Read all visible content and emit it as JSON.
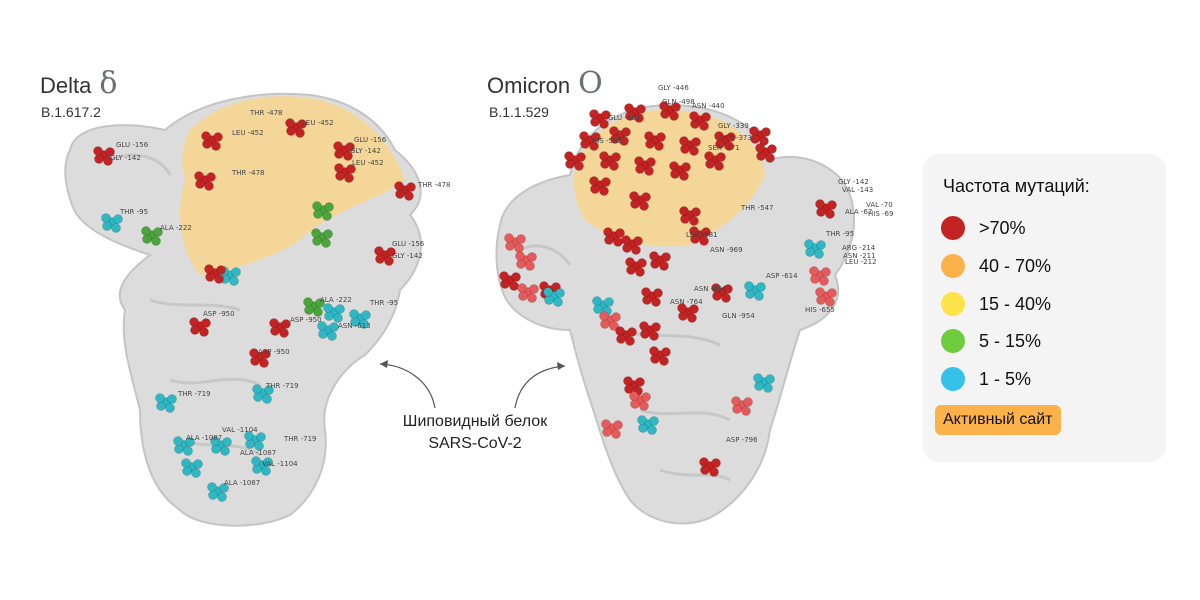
{
  "variants": [
    {
      "name": "Delta",
      "glyph": "δ",
      "code": "B.1.617.2",
      "labels": [
        "THR -478",
        "LEU -452",
        "LEU -452",
        "GLU -156",
        "GLY -142",
        "LEU -452",
        "GLU -156",
        "GLY -142",
        "THR -478",
        "THR -478",
        "THR -95",
        "ALA -222",
        "GLU -156",
        "GLY -142",
        "ALA -222",
        "THR -95",
        "ASP -950",
        "ASP -950",
        "ASN -613",
        "ASP -950",
        "THR -719",
        "THR -719",
        "VAL -1104",
        "ALA -1087",
        "THR -719",
        "ALA -1087",
        "VAL -1104",
        "ALA -1087"
      ]
    },
    {
      "name": "Omicron",
      "glyph": "O",
      "code": "B.1.1.529",
      "labels": [
        "GLY -446",
        "GLN -498",
        "ASN -440",
        "GLU -484",
        "SER -373",
        "GLY -339",
        "SER -371",
        "HIS -505",
        "THR -547",
        "GLY -142",
        "VAL -143",
        "VAL -70",
        "ALA -67",
        "HIS -69",
        "THR -95",
        "ARG -214",
        "ASN -211",
        "LEU -212",
        "ASN -969",
        "ASN -856",
        "ASN -764",
        "GLN -954",
        "ASP -614",
        "HIS -655",
        "ASP -796",
        "LEU -981"
      ]
    }
  ],
  "center_caption": {
    "line1": "Шиповидный белок",
    "line2": "SARS-CoV-2"
  },
  "legend": {
    "title": "Частота мутаций:",
    "items": [
      {
        "label": ">70%",
        "color": "#c42323"
      },
      {
        "label": "40 - 70%",
        "color": "#fbb24a"
      },
      {
        "label": "15 - 40%",
        "color": "#fde24a"
      },
      {
        "label": "5 - 15%",
        "color": "#6fcc3c"
      },
      {
        "label": "1 - 5%",
        "color": "#35c1e8"
      }
    ],
    "active_site_label": "Активный сайт",
    "active_site_color": "#fbb24a"
  },
  "colors": {
    "protein_surface": "#dcdcdc",
    "active_site_region": "#f8d58d",
    "mut_red": "#c42323",
    "mut_cyan": "#2fb8c4",
    "mut_green": "#4aa53a",
    "mut_light_red": "#e55a5a"
  }
}
